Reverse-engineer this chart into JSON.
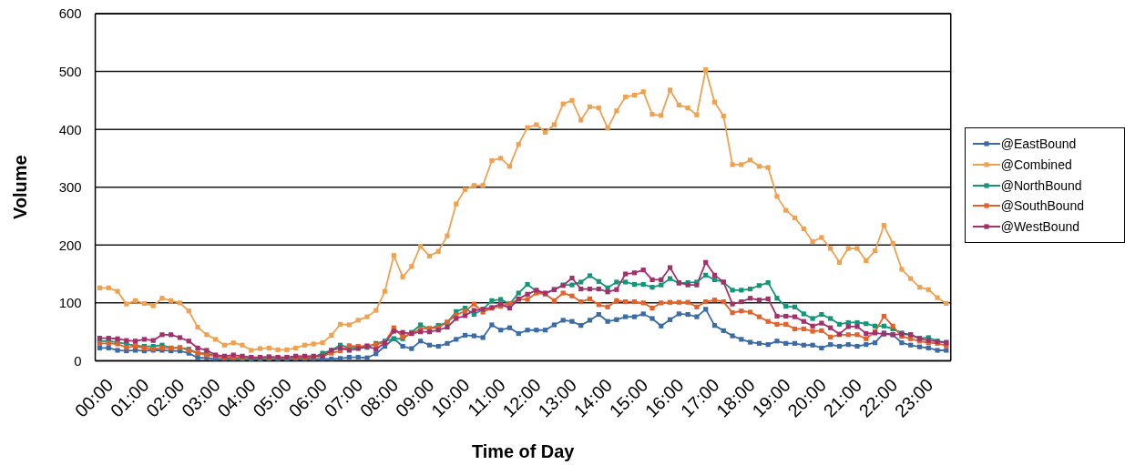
{
  "chart_data": {
    "type": "line",
    "xlabel": "Time of Day",
    "ylabel": "Volume",
    "x": [
      0,
      0.25,
      0.5,
      0.75,
      1,
      1.25,
      1.5,
      1.75,
      2,
      2.25,
      2.5,
      2.75,
      3,
      3.25,
      3.5,
      3.75,
      4,
      4.25,
      4.5,
      4.75,
      5,
      5.25,
      5.5,
      5.75,
      6,
      6.25,
      6.5,
      6.75,
      7,
      7.25,
      7.5,
      7.75,
      8,
      8.25,
      8.5,
      8.75,
      9,
      9.25,
      9.5,
      9.75,
      10,
      10.25,
      10.5,
      10.75,
      11,
      11.25,
      11.5,
      11.75,
      12,
      12.25,
      12.5,
      12.75,
      13,
      13.25,
      13.5,
      13.75,
      14,
      14.25,
      14.5,
      14.75,
      15,
      15.25,
      15.5,
      15.75,
      16,
      16.25,
      16.5,
      16.75,
      17,
      17.25,
      17.5,
      17.75,
      18,
      18.25,
      18.5,
      18.75,
      19,
      19.25,
      19.5,
      19.75,
      20,
      20.25,
      20.5,
      20.75,
      21,
      21.25,
      21.5,
      21.75,
      22,
      22.25,
      22.5,
      22.75,
      23,
      23.25,
      23.5,
      23.75
    ],
    "xlim": [
      -0.125,
      23.875
    ],
    "xticks": [
      {
        "value": 0,
        "label": "00:00"
      },
      {
        "value": 1,
        "label": "01:00"
      },
      {
        "value": 2,
        "label": "02:00"
      },
      {
        "value": 3,
        "label": "03:00"
      },
      {
        "value": 4,
        "label": "04:00"
      },
      {
        "value": 5,
        "label": "05:00"
      },
      {
        "value": 6,
        "label": "06:00"
      },
      {
        "value": 7,
        "label": "07:00"
      },
      {
        "value": 8,
        "label": "08:00"
      },
      {
        "value": 9,
        "label": "09:00"
      },
      {
        "value": 10,
        "label": "10:00"
      },
      {
        "value": 11,
        "label": "11:00"
      },
      {
        "value": 12,
        "label": "12:00"
      },
      {
        "value": 13,
        "label": "13:00"
      },
      {
        "value": 14,
        "label": "14:00"
      },
      {
        "value": 15,
        "label": "15:00"
      },
      {
        "value": 16,
        "label": "16:00"
      },
      {
        "value": 17,
        "label": "17:00"
      },
      {
        "value": 18,
        "label": "18:00"
      },
      {
        "value": 19,
        "label": "19:00"
      },
      {
        "value": 20,
        "label": "20:00"
      },
      {
        "value": 21,
        "label": "21:00"
      },
      {
        "value": 22,
        "label": "22:00"
      },
      {
        "value": 23,
        "label": "23:00"
      }
    ],
    "ylim": [
      0,
      600
    ],
    "yticks": [
      0,
      100,
      200,
      300,
      400,
      500,
      600
    ],
    "grid": "y",
    "legend": "right",
    "marker": "square",
    "line_style": "solid",
    "series": [
      {
        "name": "@EastBound",
        "color": "#3b6ba5",
        "values": [
          22,
          22,
          18,
          17,
          18,
          17,
          18,
          18,
          17,
          17,
          13,
          5,
          5,
          3,
          3,
          3,
          3,
          2,
          2,
          2,
          2,
          2,
          2,
          3,
          3,
          3,
          3,
          4,
          6,
          6,
          5,
          12,
          25,
          38,
          25,
          21,
          34,
          27,
          25,
          30,
          37,
          44,
          43,
          40,
          62,
          53,
          57,
          47,
          53,
          53,
          53,
          62,
          70,
          68,
          61,
          70,
          80,
          68,
          71,
          76,
          76,
          81,
          73,
          60,
          71,
          81,
          80,
          76,
          89,
          61,
          52,
          43,
          37,
          32,
          30,
          28,
          34,
          30,
          30,
          27,
          27,
          22,
          28,
          25,
          28,
          25,
          28,
          31,
          48,
          45,
          31,
          27,
          24,
          22,
          18,
          18
        ]
      },
      {
        "name": "@Combined",
        "color": "#f0a150",
        "values": [
          126,
          126,
          120,
          98,
          104,
          99,
          95,
          108,
          104,
          100,
          86,
          58,
          45,
          37,
          27,
          31,
          27,
          18,
          21,
          22,
          19,
          19,
          22,
          27,
          29,
          31,
          44,
          63,
          62,
          70,
          76,
          87,
          120,
          182,
          145,
          163,
          198,
          181,
          189,
          216,
          271,
          296,
          303,
          303,
          346,
          350,
          336,
          374,
          403,
          408,
          395,
          408,
          444,
          450,
          416,
          439,
          437,
          402,
          432,
          456,
          459,
          465,
          426,
          424,
          468,
          442,
          437,
          425,
          503,
          447,
          423,
          339,
          339,
          347,
          336,
          334,
          284,
          260,
          247,
          228,
          206,
          213,
          194,
          170,
          194,
          194,
          173,
          190,
          234,
          203,
          158,
          142,
          127,
          123,
          109,
          99
        ]
      },
      {
        "name": "@NorthBound",
        "color": "#13957a",
        "values": [
          34,
          34,
          32,
          29,
          26,
          25,
          25,
          27,
          22,
          22,
          20,
          13,
          13,
          8,
          5,
          5,
          4,
          3,
          3,
          4,
          4,
          4,
          5,
          5,
          6,
          13,
          18,
          27,
          23,
          22,
          23,
          30,
          34,
          38,
          38,
          49,
          62,
          55,
          61,
          66,
          85,
          91,
          80,
          89,
          104,
          106,
          98,
          117,
          132,
          120,
          116,
          123,
          131,
          131,
          136,
          147,
          137,
          126,
          136,
          136,
          132,
          132,
          127,
          131,
          142,
          134,
          135,
          136,
          148,
          140,
          136,
          122,
          122,
          124,
          130,
          135,
          108,
          94,
          93,
          81,
          73,
          80,
          73,
          63,
          66,
          66,
          64,
          60,
          60,
          55,
          48,
          45,
          39,
          40,
          34,
          32
        ]
      },
      {
        "name": "@SouthBound",
        "color": "#e3622a",
        "values": [
          30,
          30,
          29,
          23,
          25,
          22,
          20,
          22,
          22,
          23,
          18,
          13,
          10,
          8,
          6,
          6,
          5,
          5,
          5,
          5,
          5,
          5,
          6,
          6,
          7,
          8,
          13,
          17,
          26,
          25,
          26,
          28,
          32,
          57,
          41,
          47,
          55,
          56,
          57,
          67,
          79,
          86,
          98,
          84,
          91,
          94,
          99,
          106,
          106,
          117,
          115,
          104,
          117,
          112,
          102,
          107,
          97,
          93,
          104,
          102,
          102,
          100,
          91,
          100,
          101,
          101,
          101,
          93,
          102,
          105,
          102,
          83,
          86,
          84,
          76,
          68,
          63,
          63,
          55,
          55,
          51,
          52,
          41,
          45,
          45,
          45,
          38,
          50,
          77,
          60,
          42,
          38,
          34,
          31,
          30,
          26
        ]
      },
      {
        "name": "@WestBound",
        "color": "#a2306b",
        "values": [
          39,
          39,
          38,
          35,
          34,
          37,
          35,
          45,
          45,
          40,
          34,
          22,
          18,
          10,
          8,
          10,
          8,
          6,
          6,
          7,
          6,
          6,
          8,
          8,
          8,
          8,
          18,
          22,
          18,
          21,
          25,
          20,
          31,
          51,
          49,
          47,
          50,
          50,
          53,
          58,
          73,
          78,
          87,
          89,
          92,
          98,
          91,
          107,
          115,
          122,
          117,
          123,
          130,
          143,
          124,
          124,
          124,
          119,
          123,
          150,
          152,
          157,
          140,
          140,
          161,
          135,
          131,
          131,
          170,
          148,
          136,
          98,
          102,
          108,
          105,
          107,
          77,
          77,
          76,
          68,
          60,
          65,
          57,
          46,
          59,
          59,
          47,
          48,
          46,
          45,
          46,
          45,
          38,
          35,
          33,
          31
        ]
      }
    ]
  }
}
